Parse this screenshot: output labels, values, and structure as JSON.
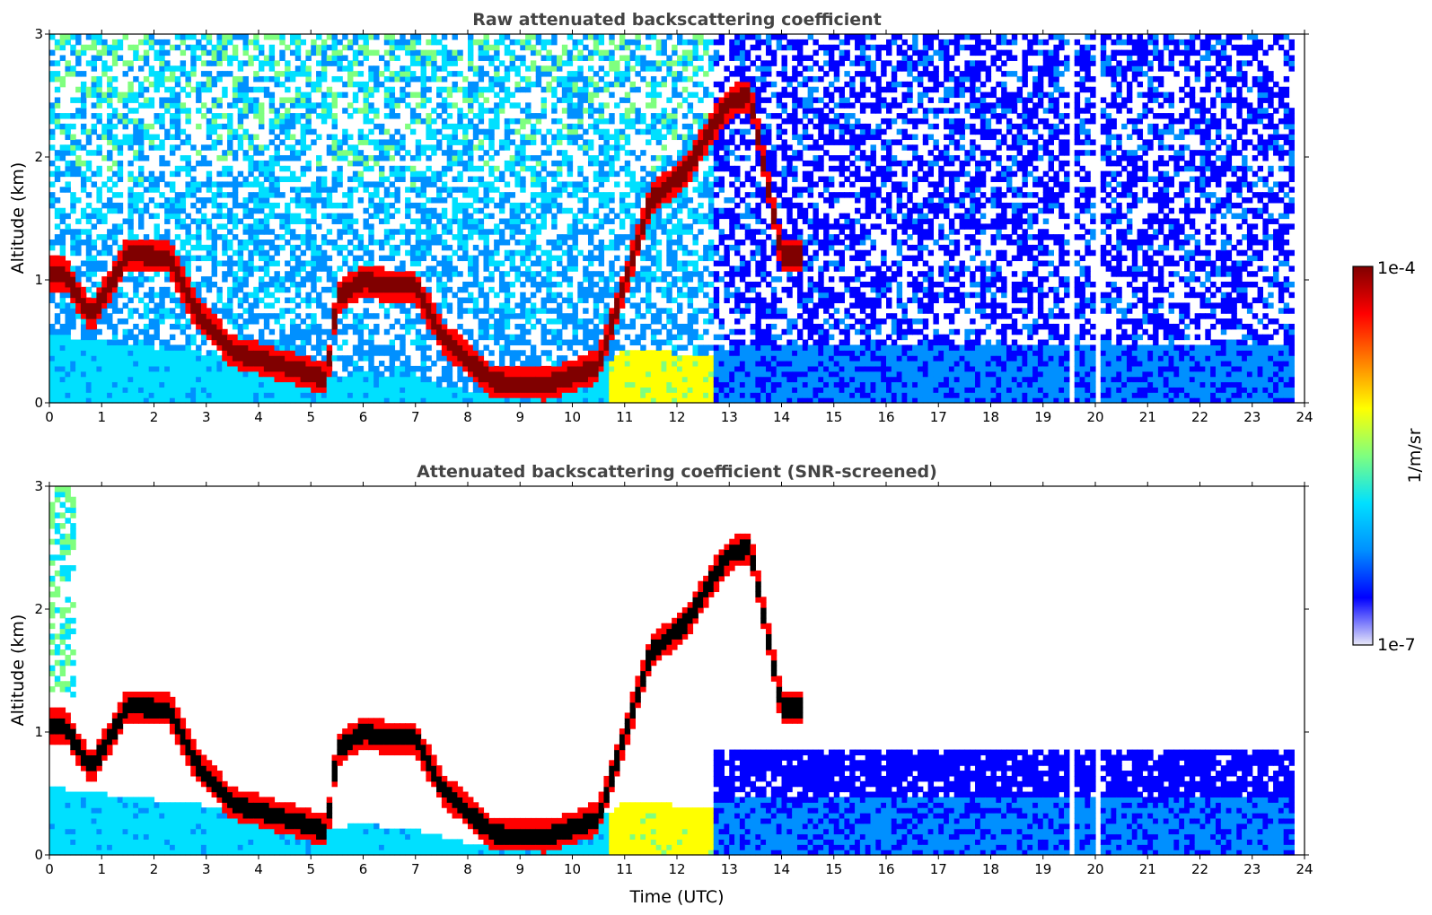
{
  "chart_data": [
    {
      "type": "heatmap",
      "title": "Raw attenuated backscattering coefficient",
      "xlabel": "",
      "ylabel": "Altitude (km)",
      "xlim": [
        0,
        24
      ],
      "ylim": [
        0,
        3
      ],
      "xticks": [
        "0",
        "1",
        "2",
        "3",
        "4",
        "5",
        "6",
        "7",
        "8",
        "9",
        "10",
        "11",
        "12",
        "13",
        "14",
        "15",
        "16",
        "17",
        "18",
        "19",
        "20",
        "21",
        "22",
        "23",
        "24"
      ],
      "yticks": [
        "0",
        "1",
        "2",
        "3"
      ],
      "screened": false,
      "features": {
        "boundary_layer_base_km": [
          [
            0,
            0.55
          ],
          [
            1,
            0.5
          ],
          [
            2,
            0.45
          ],
          [
            3,
            0.4
          ],
          [
            4,
            0.33
          ],
          [
            5,
            0.2
          ],
          [
            6,
            0.25
          ],
          [
            7,
            0.2
          ],
          [
            8,
            0.1
          ],
          [
            9,
            0.1
          ],
          [
            10,
            0.1
          ],
          [
            11,
            0.45
          ],
          [
            12,
            0.4
          ],
          [
            12.7,
            0.4
          ],
          [
            13,
            0.45
          ],
          [
            16,
            0.45
          ],
          [
            20,
            0.45
          ],
          [
            23.8,
            0.45
          ]
        ],
        "cloud_layer_km": [
          [
            0.3,
            1.05
          ],
          [
            0.8,
            0.7
          ],
          [
            1.5,
            1.22
          ],
          [
            2.3,
            1.18
          ],
          [
            2.8,
            0.75
          ],
          [
            3.5,
            0.42
          ],
          [
            4.5,
            0.3
          ],
          [
            5.3,
            0.2
          ],
          [
            5.5,
            0.85
          ],
          [
            6,
            1.0
          ],
          [
            6.5,
            0.95
          ],
          [
            7,
            0.95
          ],
          [
            7.5,
            0.55
          ],
          [
            8,
            0.35
          ],
          [
            8.5,
            0.17
          ],
          [
            9.5,
            0.15
          ],
          [
            10.5,
            0.3
          ],
          [
            11.5,
            1.65
          ],
          [
            12.2,
            1.9
          ],
          [
            12.6,
            2.2
          ],
          [
            13,
            2.45
          ],
          [
            13.4,
            2.5
          ],
          [
            14,
            1.2
          ]
        ],
        "data_end_utc": 23.8,
        "gaps_utc": [
          19.55,
          20.05
        ]
      }
    },
    {
      "type": "heatmap",
      "title": "Attenuated backscattering coefficient (SNR-screened)",
      "xlabel": "Time (UTC)",
      "ylabel": "Altitude (km)",
      "xlim": [
        0,
        24
      ],
      "ylim": [
        0,
        3
      ],
      "xticks": [
        "0",
        "1",
        "2",
        "3",
        "4",
        "5",
        "6",
        "7",
        "8",
        "9",
        "10",
        "11",
        "12",
        "13",
        "14",
        "15",
        "16",
        "17",
        "18",
        "19",
        "20",
        "21",
        "22",
        "23",
        "24"
      ],
      "yticks": [
        "0",
        "1",
        "2",
        "3"
      ],
      "screened": true
    }
  ],
  "colorbar": {
    "label": "1/m/sr",
    "max_label": "1e-4",
    "min_label": "1e-7",
    "scale": "log",
    "colors": [
      "#e8e8f8",
      "#0000ff",
      "#0090ff",
      "#00e0ff",
      "#7fff7f",
      "#ffff00",
      "#ff8000",
      "#ff0000",
      "#800000"
    ]
  }
}
